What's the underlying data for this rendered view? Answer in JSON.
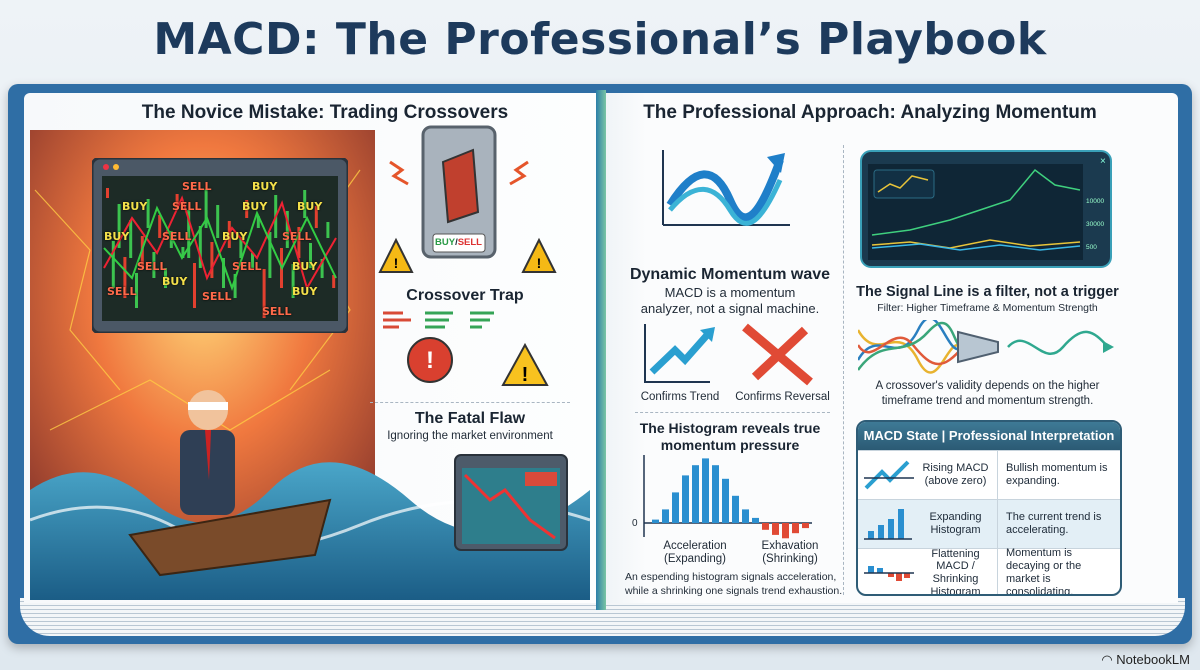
{
  "title": "MACD: The Professional’s Playbook",
  "left_page": {
    "heading": "The Novice Mistake: Trading Crossovers",
    "monitor_labels": [
      "SELL",
      "BUY",
      "BUY",
      "SELL",
      "BUY",
      "BUY",
      "BUY",
      "SELL",
      "BUY",
      "SELL",
      "SELL",
      "SELL",
      "BUY",
      "BUY",
      "SELL",
      "SELL",
      "BUY",
      "SELL"
    ],
    "switch_labels": {
      "buy": "BUY",
      "sell": "SELL"
    },
    "crossover_trap": "Crossover Trap",
    "fatal_flaw_title": "The Fatal Flaw",
    "fatal_flaw_subtitle": "Ignoring the market environment"
  },
  "right_page": {
    "heading": "The Professional Approach: Analyzing Momentum",
    "momentum": {
      "title": "Dynamic Momentum wave",
      "text_line1": "MACD is a momentum",
      "text_line2": "analyzer, not a signal machine.",
      "confirms_trend": "Confirms Trend",
      "confirms_reversal": "Confirms Reversal"
    },
    "histogram": {
      "title_line1": "The Histogram reveals true",
      "title_line2": "momentum pressure",
      "zero_label": "0",
      "label_left_1": "Acceleration",
      "label_left_2": "(Expanding)",
      "label_right_1": "Exhavation",
      "label_right_2": "(Shrinking)",
      "caption_line1": "An espending histogram signals acceleration,",
      "caption_line2": "while a shrinking one signals trend exhaustion."
    },
    "signal": {
      "chart_ticks": [
        "10000",
        "30000",
        "500"
      ],
      "title": "The Signal Line is a filter, not a trigger",
      "subtitle": "Filter: Higher Timeframe & Momentum Strength",
      "caption_line1": "A crossover's validity depends on the higher",
      "caption_line2": "timeframe trend and momentum strength."
    },
    "table": {
      "header": "MACD State | Professional Interpretation",
      "rows": [
        {
          "state": "Rising MACD (above zero)",
          "interpretation": "Bullish momentum is expanding."
        },
        {
          "state": "Expanding Histogram",
          "interpretation": "The current trend is accelerating."
        },
        {
          "state": "Flattening MACD / Shrinking Histogram",
          "interpretation": "Momentum is decaying or the market is consolidating."
        }
      ]
    }
  },
  "brand": "NotebookLM",
  "colors": {
    "title": "#1d3a5c",
    "book": "#2f6ea5",
    "bullish": "#2fa84f",
    "bearish": "#e0402f",
    "table_header": "#2b5a74"
  }
}
